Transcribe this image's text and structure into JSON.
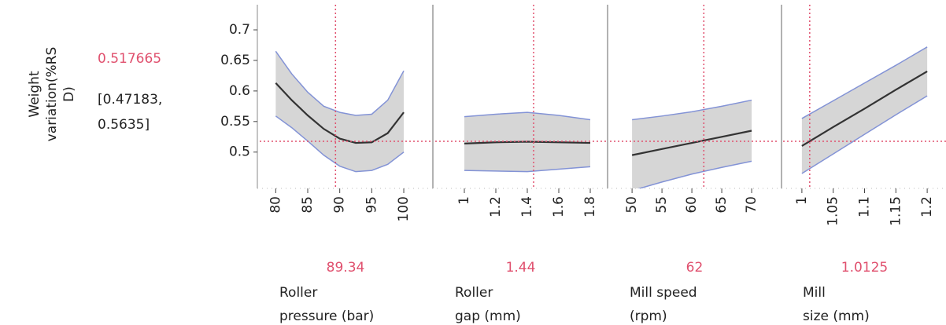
{
  "chart_data": {
    "type": "profiler",
    "ylabel": [
      "Weight",
      "variation(%RS",
      "D)"
    ],
    "prediction": 0.517665,
    "ci_label": [
      "[0.47183,",
      "0.5635]"
    ],
    "ylim": [
      0.456,
      0.736
    ],
    "yticks": [
      0.5,
      0.55,
      0.6,
      0.65,
      0.7
    ],
    "line_color": "#333333",
    "band_color": "#d6d6d6",
    "band_edge_color": "#8393d6",
    "reference_color": "#e0506e",
    "panels": [
      {
        "xlabel": [
          "Roller",
          "pressure (bar)"
        ],
        "current": 89.34,
        "xlim": [
          77.5,
          104.3
        ],
        "xticks": [
          80,
          85,
          90,
          95,
          100
        ],
        "x": [
          80,
          82.5,
          85,
          87.5,
          90,
          92.5,
          95,
          97.5,
          100
        ],
        "values": [
          0.613,
          0.585,
          0.56,
          0.538,
          0.522,
          0.515,
          0.516,
          0.531,
          0.565
        ],
        "upper": [
          0.665,
          0.628,
          0.598,
          0.575,
          0.565,
          0.56,
          0.562,
          0.585,
          0.633
        ],
        "lower": [
          0.559,
          0.54,
          0.518,
          0.495,
          0.477,
          0.468,
          0.47,
          0.48,
          0.5
        ]
      },
      {
        "xlabel": [
          "Roller",
          "gap (mm)"
        ],
        "current": 1.44,
        "xlim": [
          0.815,
          1.9
        ],
        "xticks": [
          1,
          1.2,
          1.4,
          1.6,
          1.8
        ],
        "x": [
          1,
          1.2,
          1.4,
          1.6,
          1.8
        ],
        "values": [
          0.514,
          0.516,
          0.517,
          0.516,
          0.515
        ],
        "upper": [
          0.558,
          0.562,
          0.565,
          0.56,
          0.553
        ],
        "lower": [
          0.47,
          0.469,
          0.468,
          0.472,
          0.476
        ]
      },
      {
        "xlabel": [
          "Mill speed",
          "(rpm)"
        ],
        "current": 62,
        "xlim": [
          46.3,
          74.6
        ],
        "xticks": [
          50,
          55,
          60,
          65,
          70
        ],
        "x": [
          50,
          55,
          60,
          65,
          70
        ],
        "values": [
          0.495,
          0.505,
          0.515,
          0.525,
          0.535
        ],
        "upper": [
          0.553,
          0.559,
          0.566,
          0.575,
          0.585
        ],
        "lower": [
          0.437,
          0.451,
          0.464,
          0.475,
          0.485
        ]
      },
      {
        "xlabel": [
          "Mill",
          "size (mm)"
        ],
        "current": 1.0125,
        "xlim": [
          0.97,
          1.23
        ],
        "xticks": [
          1,
          1.05,
          1.1,
          1.15,
          1.2
        ],
        "x": [
          1,
          1.05,
          1.1,
          1.15,
          1.2
        ],
        "values": [
          0.51,
          0.541,
          0.571,
          0.602,
          0.632
        ],
        "upper": [
          0.555,
          0.584,
          0.613,
          0.642,
          0.672
        ],
        "lower": [
          0.465,
          0.497,
          0.529,
          0.561,
          0.592
        ]
      }
    ]
  }
}
